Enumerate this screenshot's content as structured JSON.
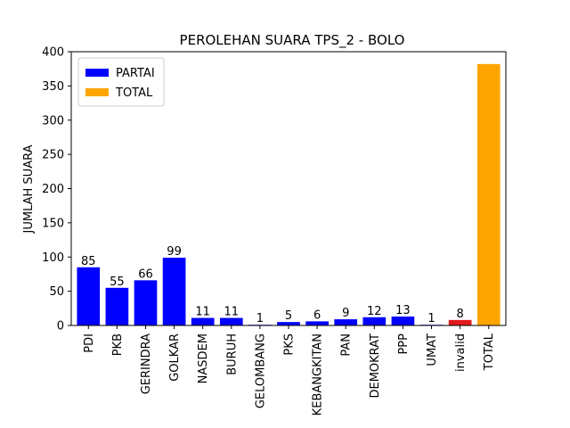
{
  "chart_data": {
    "type": "bar",
    "title": "PEROLEHAN SUARA TPS_2 - BOLO",
    "xlabel": "",
    "ylabel": "JUMLAH SUARA",
    "ylim": [
      0,
      400
    ],
    "yticks": [
      0,
      50,
      100,
      150,
      200,
      250,
      300,
      350,
      400
    ],
    "categories": [
      "PDI",
      "PKB",
      "GERINDRA",
      "GOLKAR",
      "NASDEM",
      "BURUH",
      "GELOMBANG",
      "PKS",
      "KEBANGKITAN",
      "PAN",
      "DEMOKRAT",
      "PPP",
      "UMAT",
      "invalid",
      "TOTAL"
    ],
    "values": [
      85,
      55,
      66,
      99,
      11,
      11,
      1,
      5,
      6,
      9,
      12,
      13,
      1,
      8,
      382
    ],
    "data_labels": [
      "85",
      "55",
      "66",
      "99",
      "11",
      "11",
      "1",
      "5",
      "6",
      "9",
      "12",
      "13",
      "1",
      "8",
      ""
    ],
    "bar_colors": [
      "#0000ff",
      "#0000ff",
      "#0000ff",
      "#0000ff",
      "#0000ff",
      "#0000ff",
      "#0000ff",
      "#0000ff",
      "#0000ff",
      "#0000ff",
      "#0000ff",
      "#0000ff",
      "#0000ff",
      "#e31a1c",
      "#ffa500"
    ],
    "legend": {
      "placement": "top-left",
      "entries": [
        {
          "label": "PARTAI",
          "color": "#0000ff"
        },
        {
          "label": "TOTAL",
          "color": "#ffa500"
        }
      ]
    },
    "grid": false
  }
}
